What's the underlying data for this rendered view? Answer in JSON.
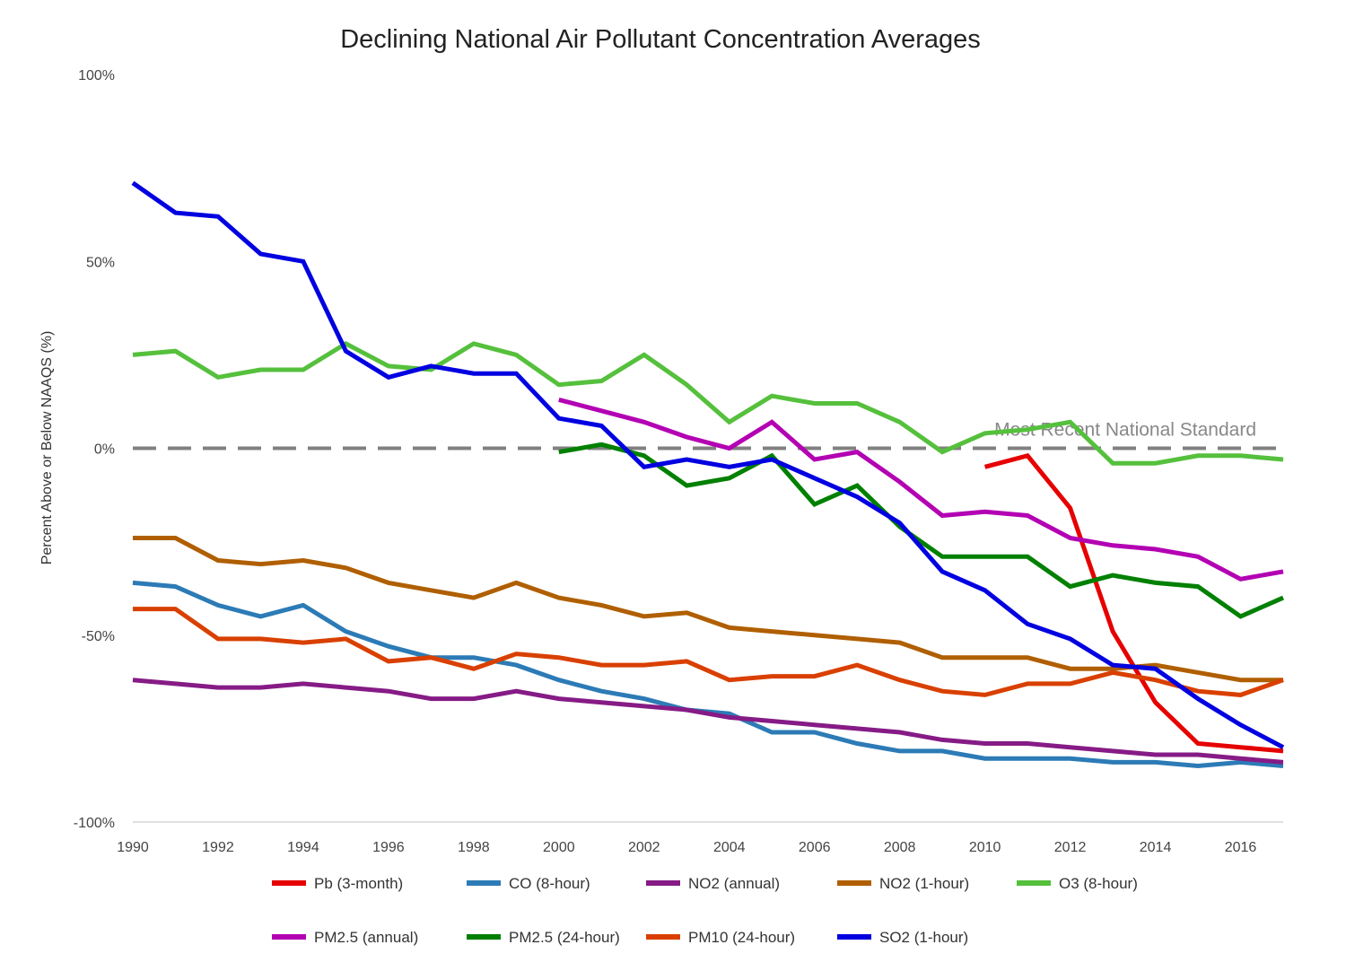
{
  "chart_data": {
    "type": "line",
    "title": "Declining National Air Pollutant Concentration Averages",
    "xlabel": "",
    "ylabel": "Percent Above or Below NAAQS (%)",
    "xlim": [
      1990,
      2017
    ],
    "ylim": [
      -100,
      100
    ],
    "x_ticks": [
      1990,
      1992,
      1994,
      1996,
      1998,
      2000,
      2002,
      2004,
      2006,
      2008,
      2010,
      2012,
      2014,
      2016
    ],
    "x_tick_labels": [
      "1990",
      "1992",
      "1994",
      "1996",
      "1998",
      "2000",
      "2002",
      "2004",
      "2006",
      "2008",
      "2010",
      "2012",
      "2014",
      "2016"
    ],
    "y_ticks": [
      100,
      50,
      0,
      -50,
      -100
    ],
    "y_tick_labels": [
      "100%",
      "50%",
      "0%",
      "-50%",
      "-100%"
    ],
    "grid": false,
    "legend_position": "bottom",
    "reference_line": {
      "value": 0,
      "label": "Most Recent National Standard",
      "color": "#808080",
      "style": "dashed"
    },
    "series": [
      {
        "name": "Pb (3-month)",
        "color": "#e60000",
        "start_year": 2010,
        "values": [
          -5,
          -2,
          -16,
          -49,
          -68,
          -79,
          -80,
          -81
        ]
      },
      {
        "name": "CO (8-hour)",
        "color": "#2c7bb6",
        "start_year": 1990,
        "values": [
          -36,
          -37,
          -42,
          -45,
          -42,
          -49,
          -53,
          -56,
          -56,
          -58,
          -62,
          -65,
          -67,
          -70,
          -71,
          -76,
          -76,
          -79,
          -81,
          -81,
          -83,
          -83,
          -83,
          -84,
          -84,
          -85,
          -84,
          -85
        ]
      },
      {
        "name": "NO2 (annual)",
        "color": "#861b86",
        "start_year": 1990,
        "values": [
          -62,
          -63,
          -64,
          -64,
          -63,
          -64,
          -65,
          -67,
          -67,
          -65,
          -67,
          -68,
          -69,
          -70,
          -72,
          -73,
          -74,
          -75,
          -76,
          -78,
          -79,
          -79,
          -80,
          -81,
          -82,
          -82,
          -83,
          -84
        ]
      },
      {
        "name": "NO2 (1-hour)",
        "color": "#b05f00",
        "start_year": 1990,
        "values": [
          -24,
          -24,
          -30,
          -31,
          -30,
          -32,
          -36,
          -38,
          -40,
          -36,
          -40,
          -42,
          -45,
          -44,
          -48,
          -49,
          -50,
          -51,
          -52,
          -56,
          -56,
          -56,
          -59,
          -59,
          -58,
          -60,
          -62,
          -62
        ]
      },
      {
        "name": "O3 (8-hour)",
        "color": "#55c03c",
        "start_year": 1990,
        "values": [
          25,
          26,
          19,
          21,
          21,
          28,
          22,
          21,
          28,
          25,
          17,
          18,
          25,
          17,
          7,
          14,
          12,
          12,
          7,
          -1,
          4,
          5,
          7,
          -4,
          -4,
          -2,
          -2,
          -3
        ]
      },
      {
        "name": "PM2.5 (annual)",
        "color": "#b300b3",
        "start_year": 2000,
        "values": [
          13,
          10,
          7,
          3,
          0,
          7,
          -3,
          -1,
          -9,
          -18,
          -17,
          -18,
          -24,
          -26,
          -27,
          -29,
          -35,
          -33
        ]
      },
      {
        "name": "PM2.5 (24-hour)",
        "color": "#008000",
        "start_year": 2000,
        "values": [
          -1,
          1,
          -2,
          -10,
          -8,
          -2,
          -15,
          -10,
          -21,
          -29,
          -29,
          -29,
          -37,
          -34,
          -36,
          -37,
          -45,
          -40
        ]
      },
      {
        "name": "PM10 (24-hour)",
        "color": "#d94000",
        "start_year": 1990,
        "values": [
          -43,
          -43,
          -51,
          -51,
          -52,
          -51,
          -57,
          -56,
          -59,
          -55,
          -56,
          -58,
          -58,
          -57,
          -62,
          -61,
          -61,
          -58,
          -62,
          -65,
          -66,
          -63,
          -63,
          -60,
          -62,
          -65,
          -66,
          -62
        ]
      },
      {
        "name": "SO2 (1-hour)",
        "color": "#0000e0",
        "start_year": 1990,
        "values": [
          71,
          63,
          62,
          52,
          50,
          26,
          19,
          22,
          20,
          20,
          8,
          6,
          -5,
          -3,
          -5,
          -3,
          -8,
          -13,
          -20,
          -33,
          -38,
          -47,
          -51,
          -58,
          -59,
          -67,
          -74,
          -80
        ]
      }
    ]
  }
}
